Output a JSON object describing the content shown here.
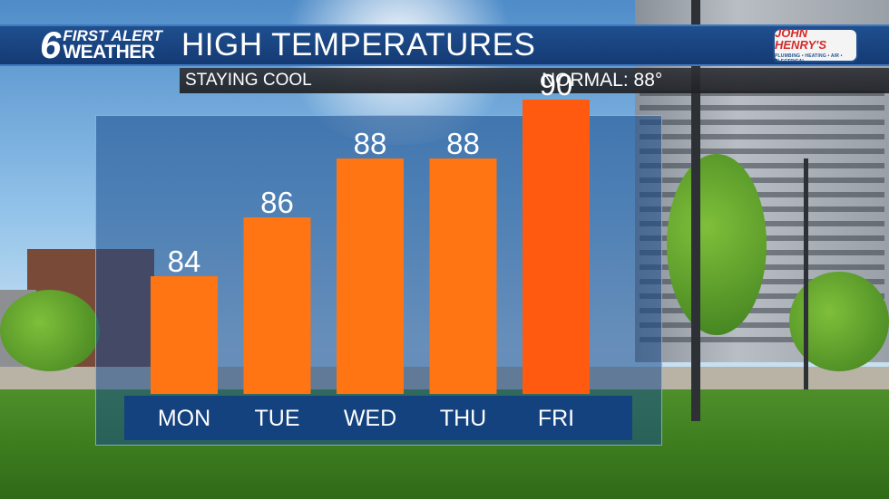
{
  "header": {
    "logo_number": "6",
    "logo_line1": "FIRST ALERT",
    "logo_line2": "WEATHER",
    "title": "HIGH TEMPERATURES",
    "sponsor_name": "JOHN HENRY'S",
    "sponsor_sub": "PLUMBING • HEATING • AIR • ELECTRICAL"
  },
  "subheader": {
    "subtitle": "STAYING COOL",
    "normal": "NORMAL: 88°"
  },
  "colors": {
    "bar": "#ff7413",
    "bar_highlight": "#ff5a10",
    "header_blue": "#1a4580",
    "day_strip": "#13427f"
  },
  "chart_data": {
    "type": "bar",
    "categories": [
      "MON",
      "TUE",
      "WED",
      "THU",
      "FRI"
    ],
    "values": [
      84,
      86,
      88,
      88,
      90
    ],
    "title": "HIGH TEMPERATURES",
    "xlabel": "",
    "ylabel": "",
    "data_labels": [
      "84",
      "86",
      "88",
      "88",
      "90"
    ],
    "grid": false,
    "legend": "none"
  }
}
